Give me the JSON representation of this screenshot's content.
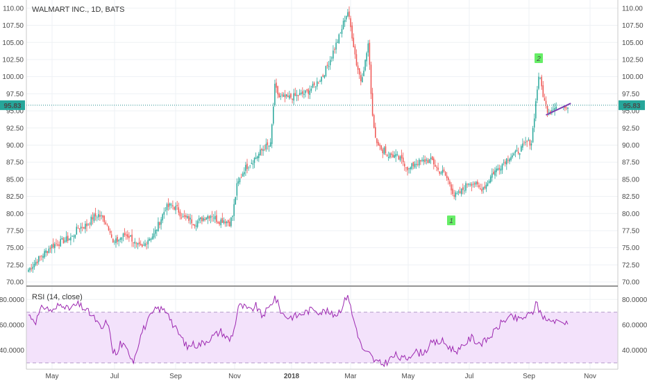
{
  "chart_data": [
    {
      "type": "candlestick",
      "title": "WALMART INC., 1D, BATS",
      "ylim": [
        69.5,
        111.2
      ],
      "y_ticks": [
        70.0,
        72.5,
        75.0,
        77.5,
        80.0,
        82.5,
        85.0,
        87.5,
        90.0,
        92.5,
        95.0,
        97.5,
        100.0,
        102.5,
        105.0,
        107.5,
        110.0
      ],
      "y_tick_labels": [
        "70.00",
        "72.50",
        "75.00",
        "77.50",
        "80.00",
        "82.50",
        "85.00",
        "87.50",
        "90.00",
        "92.50",
        "95.00",
        "97.50",
        "100.00",
        "102.50",
        "105.00",
        "107.50",
        "110.00"
      ],
      "x_labels": [
        "May",
        "Jul",
        "Sep",
        "Nov",
        "2018",
        "Mar",
        "May",
        "Jul",
        "Sep",
        "Nov"
      ],
      "last_price": 95.83,
      "last_price_label": "95.83",
      "colors": {
        "up": "#26a69a",
        "down": "#ef5350",
        "trendline": "#7b3fb0",
        "price_line": "#1e8c8c",
        "label_bg": "#26a69a"
      },
      "annotations": [
        {
          "label": "1",
          "x_index": 290,
          "y": 79.0,
          "color": "#66ee66"
        },
        {
          "label": "2",
          "x_index": 350,
          "y": 102.7,
          "color": "#66ee66"
        }
      ],
      "trendline": {
        "from": {
          "x_index": 355,
          "y": 94.4
        },
        "to": {
          "x_index": 372,
          "y": 96.1
        }
      },
      "gap_days": [
        {
          "start": 363,
          "end": 366
        }
      ],
      "anchors": [
        [
          0,
          71.8
        ],
        [
          8,
          73.6
        ],
        [
          16,
          75.3
        ],
        [
          24,
          76.0
        ],
        [
          30,
          76.6
        ],
        [
          34,
          77.9
        ],
        [
          40,
          78.3
        ],
        [
          44,
          79.4
        ],
        [
          48,
          79.8
        ],
        [
          52,
          79.1
        ],
        [
          56,
          77.6
        ],
        [
          58,
          75.6
        ],
        [
          62,
          76.2
        ],
        [
          66,
          76.9
        ],
        [
          70,
          76.6
        ],
        [
          74,
          75.3
        ],
        [
          78,
          74.9
        ],
        [
          82,
          76.3
        ],
        [
          86,
          76.9
        ],
        [
          90,
          78.8
        ],
        [
          94,
          80.8
        ],
        [
          98,
          81.2
        ],
        [
          102,
          80.7
        ],
        [
          106,
          79.4
        ],
        [
          110,
          79.2
        ],
        [
          114,
          78.6
        ],
        [
          118,
          79.1
        ],
        [
          122,
          79.6
        ],
        [
          126,
          79.8
        ],
        [
          130,
          78.9
        ],
        [
          134,
          79.1
        ],
        [
          138,
          78.6
        ],
        [
          140,
          79.7
        ],
        [
          143,
          84.0
        ],
        [
          148,
          86.5
        ],
        [
          154,
          87.8
        ],
        [
          158,
          88.7
        ],
        [
          162,
          89.7
        ],
        [
          166,
          90.0
        ],
        [
          169,
          98.5
        ],
        [
          172,
          97.0
        ],
        [
          178,
          96.9
        ],
        [
          184,
          97.2
        ],
        [
          190,
          97.6
        ],
        [
          196,
          98.6
        ],
        [
          202,
          100.2
        ],
        [
          206,
          102.0
        ],
        [
          210,
          104.2
        ],
        [
          214,
          106.3
        ],
        [
          217,
          108.6
        ],
        [
          219,
          109.5
        ],
        [
          222,
          106.0
        ],
        [
          225,
          101.9
        ],
        [
          228,
          99.5
        ],
        [
          231,
          102.2
        ],
        [
          233,
          104.8
        ],
        [
          236,
          94.4
        ],
        [
          238,
          91.2
        ],
        [
          240,
          90.3
        ],
        [
          242,
          89.0
        ],
        [
          244,
          89.6
        ],
        [
          246,
          88.5
        ],
        [
          249,
          88.6
        ],
        [
          253,
          88.2
        ],
        [
          257,
          87.6
        ],
        [
          261,
          86.4
        ],
        [
          265,
          87.4
        ],
        [
          269,
          87.5
        ],
        [
          273,
          87.8
        ],
        [
          277,
          87.7
        ],
        [
          281,
          86.3
        ],
        [
          285,
          85.9
        ],
        [
          289,
          84.4
        ],
        [
          292,
          82.6
        ],
        [
          295,
          82.8
        ],
        [
          298,
          83.5
        ],
        [
          302,
          84.6
        ],
        [
          306,
          84.4
        ],
        [
          310,
          83.5
        ],
        [
          314,
          84.2
        ],
        [
          318,
          85.8
        ],
        [
          322,
          86.6
        ],
        [
          326,
          87.5
        ],
        [
          330,
          88.4
        ],
        [
          334,
          88.7
        ],
        [
          338,
          89.5
        ],
        [
          342,
          90.4
        ],
        [
          345,
          90.4
        ],
        [
          350,
          100.2
        ],
        [
          352,
          98.5
        ],
        [
          354,
          96.3
        ],
        [
          356,
          95.2
        ],
        [
          358,
          94.9
        ],
        [
          360,
          95.7
        ],
        [
          362,
          95.6
        ],
        [
          366,
          95.9
        ],
        [
          368,
          95.8
        ],
        [
          370,
          95.83
        ]
      ]
    },
    {
      "type": "line",
      "title": "RSI (14, close)",
      "ylim": [
        25,
        90
      ],
      "y_ticks": [
        40,
        60,
        80
      ],
      "y_tick_labels": [
        "40.0000",
        "60.0000",
        "80.0000"
      ],
      "bands": {
        "upper": 70,
        "lower": 30
      },
      "colors": {
        "line": "#9c27b0",
        "fill": "#f3e2fb",
        "band": "#b59dc9"
      },
      "anchors": [
        [
          0,
          68
        ],
        [
          5,
          63
        ],
        [
          10,
          75
        ],
        [
          14,
          72
        ],
        [
          18,
          71
        ],
        [
          20,
          75
        ],
        [
          24,
          77
        ],
        [
          27,
          72
        ],
        [
          30,
          74
        ],
        [
          34,
          76
        ],
        [
          38,
          73
        ],
        [
          42,
          69
        ],
        [
          46,
          64
        ],
        [
          50,
          56
        ],
        [
          54,
          63
        ],
        [
          58,
          40
        ],
        [
          61,
          36
        ],
        [
          63,
          46
        ],
        [
          66,
          42
        ],
        [
          69,
          38
        ],
        [
          72,
          32
        ],
        [
          75,
          44
        ],
        [
          78,
          55
        ],
        [
          81,
          61
        ],
        [
          84,
          67
        ],
        [
          88,
          73
        ],
        [
          92,
          72
        ],
        [
          96,
          70
        ],
        [
          99,
          60
        ],
        [
          102,
          55
        ],
        [
          106,
          48
        ],
        [
          109,
          42
        ],
        [
          112,
          45
        ],
        [
          116,
          44
        ],
        [
          120,
          46
        ],
        [
          124,
          49
        ],
        [
          128,
          52
        ],
        [
          132,
          55
        ],
        [
          135,
          51
        ],
        [
          138,
          48
        ],
        [
          141,
          56
        ],
        [
          144,
          75
        ],
        [
          148,
          74
        ],
        [
          152,
          71
        ],
        [
          156,
          75
        ],
        [
          160,
          67
        ],
        [
          165,
          73
        ],
        [
          169,
          82
        ],
        [
          174,
          69
        ],
        [
          178,
          66
        ],
        [
          184,
          67
        ],
        [
          188,
          69
        ],
        [
          192,
          71
        ],
        [
          196,
          73
        ],
        [
          200,
          70
        ],
        [
          204,
          71
        ],
        [
          208,
          68
        ],
        [
          212,
          69
        ],
        [
          216,
          76
        ],
        [
          219,
          85
        ],
        [
          222,
          68
        ],
        [
          225,
          57
        ],
        [
          228,
          44
        ],
        [
          231,
          38
        ],
        [
          234,
          37
        ],
        [
          237,
          32
        ],
        [
          240,
          30
        ],
        [
          243,
          29
        ],
        [
          246,
          31
        ],
        [
          249,
          34
        ],
        [
          252,
          36
        ],
        [
          256,
          33
        ],
        [
          260,
          34
        ],
        [
          264,
          39
        ],
        [
          268,
          38
        ],
        [
          272,
          39
        ],
        [
          276,
          45
        ],
        [
          280,
          46
        ],
        [
          284,
          47
        ],
        [
          288,
          43
        ],
        [
          292,
          40
        ],
        [
          296,
          40
        ],
        [
          300,
          46
        ],
        [
          304,
          50
        ],
        [
          308,
          46
        ],
        [
          312,
          46
        ],
        [
          316,
          50
        ],
        [
          320,
          55
        ],
        [
          324,
          61
        ],
        [
          328,
          65
        ],
        [
          332,
          66
        ],
        [
          336,
          64
        ],
        [
          340,
          66
        ],
        [
          344,
          68
        ],
        [
          346,
          70
        ],
        [
          348,
          78
        ],
        [
          350,
          72
        ],
        [
          352,
          68
        ],
        [
          354,
          66
        ],
        [
          356,
          64
        ],
        [
          358,
          62
        ],
        [
          360,
          64
        ],
        [
          362,
          63
        ],
        [
          366,
          64
        ],
        [
          368,
          63
        ],
        [
          370,
          62
        ]
      ]
    }
  ]
}
